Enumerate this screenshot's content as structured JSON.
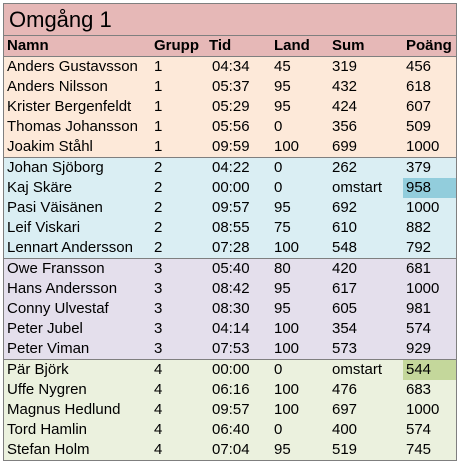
{
  "title": "Omgång 1",
  "columns": [
    "Namn",
    "Grupp",
    "Tid",
    "Land",
    "Sum",
    "Poäng"
  ],
  "rows": [
    {
      "namn": "Anders Gustavsson",
      "grupp": "1",
      "tid": "04:34",
      "land": "45",
      "sum": "319",
      "poang": "456"
    },
    {
      "namn": "Anders Nilsson",
      "grupp": "1",
      "tid": "05:37",
      "land": "95",
      "sum": "432",
      "poang": "618"
    },
    {
      "namn": "Krister Bergenfeldt",
      "grupp": "1",
      "tid": "05:29",
      "land": "95",
      "sum": "424",
      "poang": "607"
    },
    {
      "namn": "Thomas Johansson",
      "grupp": "1",
      "tid": "05:56",
      "land": "0",
      "sum": "356",
      "poang": "509"
    },
    {
      "namn": "Joakim Ståhl",
      "grupp": "1",
      "tid": "09:59",
      "land": "100",
      "sum": "699",
      "poang": "1000"
    },
    {
      "namn": "Johan Sjöborg",
      "grupp": "2",
      "tid": "04:22",
      "land": "0",
      "sum": "262",
      "poang": "379"
    },
    {
      "namn": "Kaj Skäre",
      "grupp": "2",
      "tid": "00:00",
      "land": "0",
      "sum": "omstart",
      "poang": "958"
    },
    {
      "namn": "Pasi Väisänen",
      "grupp": "2",
      "tid": "09:57",
      "land": "95",
      "sum": "692",
      "poang": "1000"
    },
    {
      "namn": "Leif Viskari",
      "grupp": "2",
      "tid": "08:55",
      "land": "75",
      "sum": "610",
      "poang": "882"
    },
    {
      "namn": "Lennart Andersson",
      "grupp": "2",
      "tid": "07:28",
      "land": "100",
      "sum": "548",
      "poang": "792"
    },
    {
      "namn": "Owe Fransson",
      "grupp": "3",
      "tid": "05:40",
      "land": "80",
      "sum": "420",
      "poang": "681"
    },
    {
      "namn": "Hans Andersson",
      "grupp": "3",
      "tid": "08:42",
      "land": "95",
      "sum": "617",
      "poang": "1000"
    },
    {
      "namn": "Conny Ulvestaf",
      "grupp": "3",
      "tid": "08:30",
      "land": "95",
      "sum": "605",
      "poang": "981"
    },
    {
      "namn": "Peter Jubel",
      "grupp": "3",
      "tid": "04:14",
      "land": "100",
      "sum": "354",
      "poang": "574"
    },
    {
      "namn": "Peter Viman",
      "grupp": "3",
      "tid": "07:53",
      "land": "100",
      "sum": "573",
      "poang": "929"
    },
    {
      "namn": "Pär Björk",
      "grupp": "4",
      "tid": "00:00",
      "land": "0",
      "sum": "omstart",
      "poang": "544"
    },
    {
      "namn": "Uffe Nygren",
      "grupp": "4",
      "tid": "06:16",
      "land": "100",
      "sum": "476",
      "poang": "683"
    },
    {
      "namn": "Magnus Hedlund",
      "grupp": "4",
      "tid": "09:57",
      "land": "100",
      "sum": "697",
      "poang": "1000"
    },
    {
      "namn": "Tord Hamlin",
      "grupp": "4",
      "tid": "06:40",
      "land": "0",
      "sum": "400",
      "poang": "574"
    },
    {
      "namn": "Stefan Holm",
      "grupp": "4",
      "tid": "07:04",
      "land": "95",
      "sum": "519",
      "poang": "745"
    }
  ],
  "colors": {
    "header": "#e6b8b7",
    "group1": "#fde9d9",
    "group2": "#daeef3",
    "group3": "#e4dfec",
    "group4": "#ebf1de",
    "highlight_blue": "#92cddc",
    "highlight_green": "#c4d79b"
  }
}
